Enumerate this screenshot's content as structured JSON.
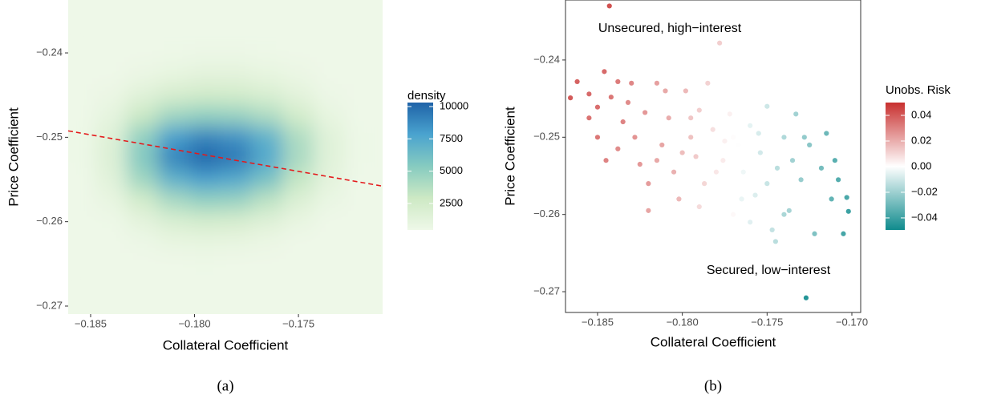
{
  "chart_data": [
    {
      "type": "heatmap",
      "xlabel": "Collateral Coefficient",
      "ylabel": "Price Coefficient",
      "caption": "(a)",
      "legend_title": "density",
      "x": [
        -0.1855,
        -0.184,
        -0.1825,
        -0.181,
        -0.1795,
        -0.178,
        -0.1765,
        -0.175,
        -0.1735,
        -0.172
      ],
      "y": [
        -0.2375,
        -0.24,
        -0.2425,
        -0.245,
        -0.2475,
        -0.25,
        -0.2525,
        -0.255,
        -0.2575,
        -0.26,
        -0.2625,
        -0.265,
        -0.2675
      ],
      "z": [
        [
          100,
          150,
          200,
          250,
          300,
          300,
          250,
          200,
          150,
          100
        ],
        [
          150,
          250,
          400,
          500,
          600,
          600,
          500,
          350,
          250,
          150
        ],
        [
          200,
          400,
          700,
          1000,
          1200,
          1200,
          1000,
          700,
          400,
          200
        ],
        [
          300,
          700,
          1500,
          2200,
          2600,
          2500,
          2000,
          1300,
          600,
          300
        ],
        [
          400,
          1100,
          3000,
          4500,
          5000,
          4800,
          4000,
          2500,
          1000,
          400
        ],
        [
          500,
          1600,
          5000,
          8000,
          9000,
          8500,
          7000,
          4000,
          1500,
          500
        ],
        [
          500,
          1700,
          5500,
          9000,
          10200,
          9500,
          7500,
          4200,
          1500,
          500
        ],
        [
          450,
          1400,
          4500,
          7000,
          8000,
          7500,
          6000,
          3200,
          1200,
          450
        ],
        [
          350,
          900,
          2500,
          4200,
          5000,
          4800,
          3500,
          1800,
          800,
          350
        ],
        [
          250,
          500,
          1200,
          2000,
          2400,
          2200,
          1600,
          900,
          450,
          250
        ],
        [
          150,
          300,
          600,
          900,
          1000,
          900,
          700,
          450,
          250,
          150
        ],
        [
          100,
          200,
          350,
          450,
          500,
          450,
          350,
          250,
          150,
          100
        ],
        [
          80,
          120,
          200,
          250,
          250,
          250,
          200,
          150,
          100,
          80
        ]
      ],
      "colorscale": [
        "#eef8e8",
        "#cde9c4",
        "#86cbc0",
        "#4aa3cf",
        "#1f63a8"
      ],
      "colorbar_lim": [
        450,
        10310
      ],
      "colorbar_ticks": [
        2500,
        5000,
        7500,
        10000
      ],
      "line": {
        "x": [
          -0.18608,
          -0.17095
        ],
        "y": [
          -0.24924,
          -0.25579
        ],
        "color": "#e41a1c",
        "style": "dashed"
      },
      "xlim": [
        -0.18608,
        -0.17095
      ],
      "ylim": [
        -0.27095,
        -0.23373
      ],
      "xticks": [
        {
          "value": -0.185,
          "label": "−0.185"
        },
        {
          "value": -0.18,
          "label": "−0.180"
        },
        {
          "value": -0.175,
          "label": "−0.175"
        }
      ],
      "yticks": [
        {
          "value": -0.24,
          "label": "−0.24"
        },
        {
          "value": -0.25,
          "label": "−0.25"
        },
        {
          "value": -0.26,
          "label": "−0.26"
        },
        {
          "value": -0.27,
          "label": "−0.27"
        }
      ]
    },
    {
      "type": "scatter",
      "xlabel": "Collateral Coefficient",
      "ylabel": "Price Coefficient",
      "caption": "(b)",
      "legend_title": "Unobs. Risk",
      "annotations": [
        "Unsecured, high−interest",
        "Secured, low−interest"
      ],
      "x": [
        -0.1866,
        -0.1862,
        -0.1855,
        -0.185,
        -0.1846,
        -0.1843,
        -0.1842,
        -0.1838,
        -0.1835,
        -0.185,
        -0.1845,
        -0.1832,
        -0.1828,
        -0.1825,
        -0.1822,
        -0.182,
        -0.1815,
        -0.1812,
        -0.1808,
        -0.1805,
        -0.1802,
        -0.1798,
        -0.1795,
        -0.1792,
        -0.179,
        -0.1787,
        -0.1785,
        -0.1782,
        -0.1778,
        -0.1776,
        -0.1772,
        -0.177,
        -0.1767,
        -0.1764,
        -0.176,
        -0.1757,
        -0.1754,
        -0.175,
        -0.1747,
        -0.1744,
        -0.174,
        -0.1737,
        -0.1733,
        -0.173,
        -0.1727,
        -0.1725,
        -0.1722,
        -0.1718,
        -0.1715,
        -0.1712,
        -0.1708,
        -0.1705,
        -0.1702,
        -0.1703,
        -0.171,
        -0.182,
        -0.181,
        -0.18,
        -0.179,
        -0.178,
        -0.177,
        -0.176,
        -0.175,
        -0.174,
        -0.1855,
        -0.1838,
        -0.183,
        -0.1815,
        -0.1795,
        -0.1775,
        -0.1755,
        -0.1735,
        -0.1745,
        -0.1728,
        -0.1765
      ],
      "y": [
        -0.2449,
        -0.2428,
        -0.2444,
        -0.2461,
        -0.2415,
        -0.233,
        -0.2448,
        -0.2428,
        -0.248,
        -0.25,
        -0.253,
        -0.2455,
        -0.25,
        -0.2535,
        -0.2468,
        -0.256,
        -0.243,
        -0.251,
        -0.2475,
        -0.2545,
        -0.258,
        -0.244,
        -0.25,
        -0.2525,
        -0.2465,
        -0.256,
        -0.243,
        -0.249,
        -0.2378,
        -0.253,
        -0.247,
        -0.26,
        -0.251,
        -0.2545,
        -0.2485,
        -0.2575,
        -0.252,
        -0.246,
        -0.262,
        -0.254,
        -0.25,
        -0.2595,
        -0.247,
        -0.2555,
        -0.2708,
        -0.251,
        -0.2625,
        -0.254,
        -0.2495,
        -0.258,
        -0.2555,
        -0.2625,
        -0.2596,
        -0.2578,
        -0.253,
        -0.2595,
        -0.244,
        -0.252,
        -0.259,
        -0.2545,
        -0.25,
        -0.261,
        -0.256,
        -0.26,
        -0.2475,
        -0.2515,
        -0.243,
        -0.253,
        -0.2475,
        -0.2505,
        -0.2495,
        -0.253,
        -0.2635,
        -0.25,
        -0.258
      ],
      "color_values": [
        0.04,
        0.038,
        0.036,
        0.035,
        0.036,
        0.042,
        0.033,
        0.032,
        0.03,
        0.033,
        0.03,
        0.028,
        0.026,
        0.025,
        0.025,
        0.024,
        0.023,
        0.022,
        0.02,
        0.019,
        0.017,
        0.017,
        0.015,
        0.013,
        0.012,
        0.01,
        0.011,
        0.008,
        0.012,
        0.005,
        0.004,
        0.002,
        0.0,
        -0.003,
        -0.005,
        -0.007,
        -0.009,
        -0.01,
        -0.012,
        -0.014,
        -0.016,
        -0.018,
        -0.019,
        -0.021,
        -0.045,
        -0.024,
        -0.026,
        -0.028,
        -0.03,
        -0.032,
        -0.035,
        -0.038,
        -0.04,
        -0.037,
        -0.034,
        0.022,
        0.021,
        0.016,
        0.009,
        0.006,
        0.001,
        -0.006,
        -0.011,
        -0.017,
        0.034,
        0.028,
        0.029,
        0.021,
        0.014,
        0.004,
        -0.008,
        -0.019,
        -0.014,
        -0.022,
        -0.004
      ],
      "colorscale": [
        "#0f8b8d",
        "#ffffff",
        "#c8302f"
      ],
      "colorbar_lim": [
        -0.0494,
        0.05
      ],
      "colorbar_ticks": [
        {
          "value": 0.04,
          "label": "0.04"
        },
        {
          "value": 0.02,
          "label": "0.02"
        },
        {
          "value": 0,
          "label": "0.00"
        },
        {
          "value": -0.02,
          "label": "−0.02"
        },
        {
          "value": -0.04,
          "label": "−0.04"
        }
      ],
      "xlim": [
        -0.18689,
        -0.16948
      ],
      "ylim": [
        -0.27269,
        -0.23223
      ],
      "xticks": [
        {
          "value": -0.185,
          "label": "−0.185"
        },
        {
          "value": -0.18,
          "label": "−0.180"
        },
        {
          "value": -0.175,
          "label": "−0.175"
        },
        {
          "value": -0.17,
          "label": "−0.170"
        }
      ],
      "yticks": [
        {
          "value": -0.24,
          "label": "−0.24"
        },
        {
          "value": -0.25,
          "label": "−0.25"
        },
        {
          "value": -0.26,
          "label": "−0.26"
        },
        {
          "value": -0.27,
          "label": "−0.27"
        }
      ]
    }
  ]
}
